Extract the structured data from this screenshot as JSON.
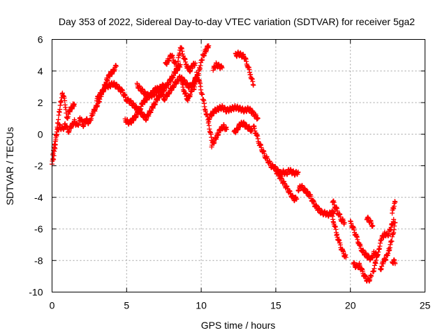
{
  "chart_data": {
    "type": "scatter",
    "title": "Day 353 of 2022, Sidereal Day-to-day VTEC variation (SDTVAR) for receiver 5ga2",
    "xlabel": "GPS time / hours",
    "ylabel": "SDTVAR / TECUs",
    "xlim": [
      0,
      25
    ],
    "ylim": [
      -10,
      6
    ],
    "xticks": [
      0,
      5,
      10,
      15,
      20,
      25
    ],
    "yticks": [
      -10,
      -8,
      -6,
      -4,
      -2,
      0,
      2,
      4,
      6
    ],
    "xtick_labels": [
      "0",
      "5",
      "10",
      "15",
      "20",
      "25"
    ],
    "ytick_labels": [
      "-10",
      "-8",
      "-6",
      "-4",
      "-2",
      "0",
      "2",
      "4",
      "6"
    ],
    "grid": true,
    "marker": "+",
    "series": [
      {
        "name": "SDTVAR",
        "color": "#ff0000",
        "segments": [
          {
            "x": [
              0.0,
              0.1,
              0.2,
              0.3,
              0.4,
              0.5,
              0.6,
              0.7,
              0.8,
              0.9,
              1.0,
              1.2,
              1.4,
              1.5
            ],
            "y": [
              -1.9,
              -1.5,
              -0.8,
              0.0,
              0.8,
              1.5,
              2.1,
              2.6,
              2.4,
              1.6,
              1.0,
              1.5,
              1.8,
              1.9
            ]
          },
          {
            "x": [
              0.05,
              0.2,
              0.35,
              0.5,
              0.7,
              0.9,
              1.1,
              1.3,
              1.5,
              1.7,
              1.9,
              2.1,
              2.3,
              2.5,
              2.7,
              2.9,
              3.1,
              3.3,
              3.5,
              3.7,
              3.9,
              4.1,
              4.3
            ],
            "y": [
              -1.2,
              -0.6,
              0.2,
              0.5,
              0.3,
              0.6,
              0.2,
              0.5,
              0.8,
              0.5,
              1.0,
              0.6,
              0.9,
              0.7,
              1.3,
              1.6,
              2.0,
              2.5,
              3.0,
              3.5,
              3.8,
              4.0,
              4.3
            ]
          },
          {
            "x": [
              3.0,
              3.3,
              3.6,
              3.9,
              4.1,
              4.4,
              4.7,
              5.0,
              5.3,
              5.6,
              5.9,
              6.1,
              6.3,
              6.5,
              6.8,
              7.1,
              7.4,
              7.7,
              8.0,
              8.3,
              8.6
            ],
            "y": [
              2.2,
              2.6,
              3.0,
              3.1,
              3.2,
              3.0,
              2.7,
              2.2,
              2.0,
              1.7,
              1.4,
              1.2,
              1.0,
              1.3,
              1.8,
              2.3,
              2.7,
              3.1,
              3.5,
              4.0,
              4.4
            ]
          },
          {
            "x": [
              4.9,
              5.2,
              5.5,
              5.8,
              6.1,
              6.4,
              6.7,
              7.0,
              7.3,
              7.5,
              7.8,
              8.1,
              8.4,
              8.6,
              8.9,
              9.2,
              9.5,
              9.7
            ],
            "y": [
              0.9,
              0.7,
              1.0,
              1.4,
              2.0,
              2.3,
              2.6,
              2.9,
              2.7,
              2.2,
              2.6,
              3.0,
              3.4,
              3.6,
              3.3,
              3.0,
              3.2,
              3.6
            ]
          },
          {
            "x": [
              5.7,
              6.0,
              6.3,
              6.6,
              6.9,
              7.2,
              7.5
            ],
            "y": [
              3.1,
              2.8,
              2.5,
              2.4,
              2.6,
              2.9,
              3.1
            ]
          },
          {
            "x": [
              7.6,
              7.8,
              8.0,
              8.2,
              8.4,
              8.6,
              8.8,
              9.0,
              9.2,
              9.4,
              9.6
            ],
            "y": [
              4.4,
              4.7,
              5.0,
              4.6,
              4.2,
              5.6,
              5.0,
              4.4,
              4.0,
              4.3,
              4.5
            ]
          },
          {
            "x": [
              8.7,
              8.9,
              9.1,
              9.3,
              9.5,
              9.7,
              9.9,
              10.1,
              10.3,
              10.5,
              10.7
            ],
            "y": [
              3.2,
              2.6,
              2.2,
              2.6,
              3.2,
              3.8,
              3.2,
              2.3,
              1.5,
              0.7,
              -0.4
            ]
          },
          {
            "x": [
              9.5,
              9.7,
              9.9,
              10.1,
              10.3,
              10.5
            ],
            "y": [
              2.9,
              3.5,
              4.2,
              4.9,
              5.3,
              5.6
            ]
          },
          {
            "x": [
              10.8,
              11.0,
              11.2,
              11.4
            ],
            "y": [
              4.1,
              4.4,
              4.3,
              4.2
            ]
          },
          {
            "x": [
              10.5,
              10.8,
              11.1,
              11.4,
              11.7,
              12.0,
              12.3,
              12.6,
              12.9,
              13.2,
              13.5,
              13.8
            ],
            "y": [
              1.0,
              1.4,
              1.6,
              1.7,
              1.5,
              1.6,
              1.7,
              1.6,
              1.5,
              1.6,
              1.3,
              1.0
            ]
          },
          {
            "x": [
              10.7,
              10.9,
              11.1,
              11.3,
              11.5,
              11.7
            ],
            "y": [
              -0.7,
              -0.4,
              0.0,
              0.3,
              0.5,
              0.3
            ]
          },
          {
            "x": [
              12.3,
              12.5,
              12.7,
              12.9,
              13.1,
              13.3,
              13.5
            ],
            "y": [
              5.0,
              5.1,
              5.0,
              4.9,
              4.4,
              3.8,
              3.1
            ]
          },
          {
            "x": [
              12.2,
              12.4,
              12.6,
              12.8,
              13.0,
              13.2,
              13.4
            ],
            "y": [
              0.1,
              0.3,
              0.6,
              0.7,
              0.5,
              0.4,
              0.2
            ]
          },
          {
            "x": [
              13.5,
              13.7,
              13.9,
              14.1,
              14.3,
              14.5,
              14.7,
              14.9,
              15.1,
              15.3,
              15.5,
              15.7,
              15.9,
              16.1,
              16.3,
              16.5
            ],
            "y": [
              0.5,
              0.0,
              -0.6,
              -1.0,
              -1.4,
              -1.7,
              -2.0,
              -2.1,
              -2.3,
              -2.5,
              -2.4,
              -2.5,
              -2.3,
              -2.4,
              -2.5,
              -2.4
            ]
          },
          {
            "x": [
              15.0,
              15.2,
              15.4,
              15.6,
              15.8,
              16.0,
              16.2,
              16.4
            ],
            "y": [
              -2.3,
              -2.6,
              -2.9,
              -3.2,
              -3.5,
              -3.8,
              -4.1,
              -4.1
            ]
          },
          {
            "x": [
              16.5,
              16.7,
              16.9,
              17.1,
              17.3,
              17.5,
              17.7,
              17.9,
              18.1,
              18.3,
              18.5,
              18.7,
              18.9
            ],
            "y": [
              -3.5,
              -3.3,
              -3.5,
              -3.7,
              -3.9,
              -4.3,
              -4.6,
              -4.8,
              -5.0,
              -5.0,
              -5.1,
              -5.0,
              -4.9
            ]
          },
          {
            "x": [
              18.8,
              19.0,
              19.2,
              19.4,
              19.6
            ],
            "y": [
              -4.2,
              -4.6,
              -5.0,
              -5.4,
              -5.6
            ]
          },
          {
            "x": [
              18.7,
              18.9,
              19.1,
              19.3,
              19.5,
              19.7
            ],
            "y": [
              -4.9,
              -5.6,
              -6.4,
              -7.0,
              -7.5,
              -7.8
            ]
          },
          {
            "x": [
              20.0,
              20.2,
              20.4,
              20.6,
              20.8,
              21.0,
              21.2,
              21.4,
              21.6,
              21.8
            ],
            "y": [
              -5.6,
              -6.0,
              -6.5,
              -7.0,
              -7.4,
              -7.6,
              -7.8,
              -7.9,
              -7.5,
              -7.7
            ]
          },
          {
            "x": [
              20.2,
              20.4,
              20.6,
              20.8,
              21.0,
              21.2,
              21.4
            ],
            "y": [
              -8.2,
              -8.4,
              -8.3,
              -8.7,
              -9.1,
              -9.3,
              -9.0
            ]
          },
          {
            "x": [
              21.5,
              21.7,
              21.9,
              22.1,
              22.3,
              22.5,
              22.7,
              22.9
            ],
            "y": [
              -8.8,
              -8.1,
              -7.3,
              -6.6,
              -6.3,
              -6.4,
              -6.0,
              -5.4
            ]
          },
          {
            "x": [
              21.1,
              21.3,
              21.5
            ],
            "y": [
              -5.3,
              -5.5,
              -5.8
            ]
          },
          {
            "x": [
              22.0,
              22.2,
              22.4,
              22.6,
              22.8,
              23.0
            ],
            "y": [
              -8.6,
              -8.1,
              -7.8,
              -7.3,
              -6.6,
              -5.6
            ]
          },
          {
            "x": [
              22.8,
              22.9,
              23.0
            ],
            "y": [
              -5.0,
              -4.6,
              -4.3
            ]
          },
          {
            "x": [
              22.8,
              22.9,
              23.0
            ],
            "y": [
              -8.2,
              -8.0,
              -8.2
            ]
          }
        ]
      }
    ]
  }
}
